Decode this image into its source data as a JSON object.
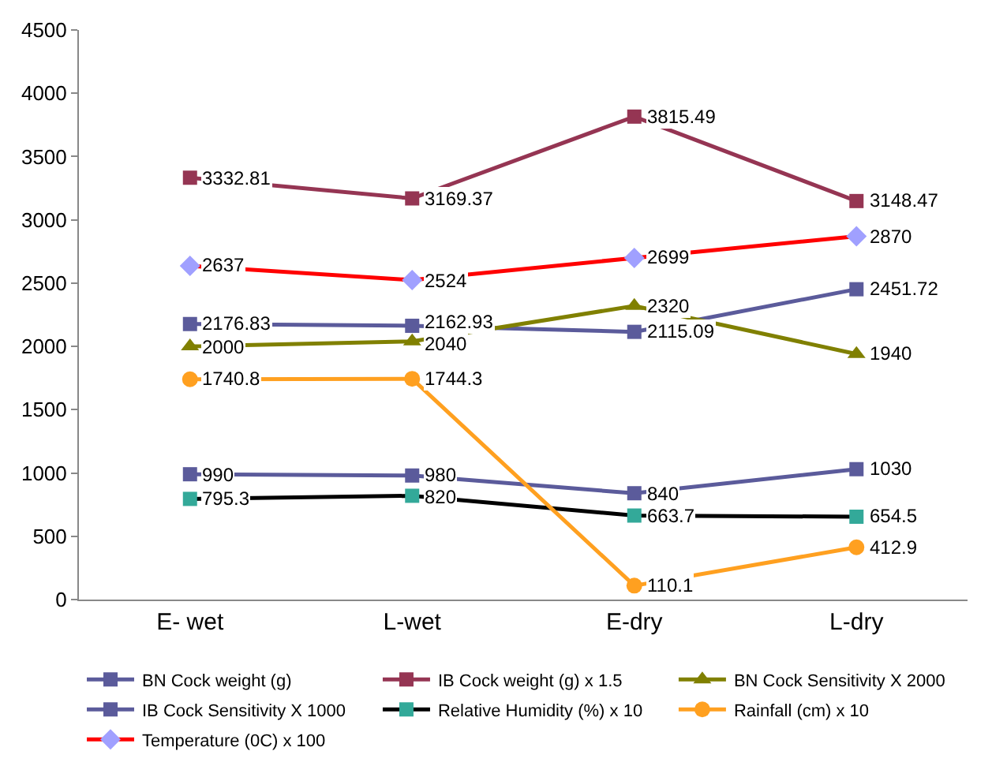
{
  "chart_data": {
    "type": "line",
    "categories": [
      "E- wet",
      "L-wet",
      "E-dry",
      "L-dry"
    ],
    "ylim": [
      0,
      4500
    ],
    "yticks": [
      0,
      500,
      1000,
      1500,
      2000,
      2500,
      3000,
      3500,
      4000,
      4500
    ],
    "grid": false,
    "legend": "bottom",
    "data_labels": true,
    "line_style": "solid",
    "series": [
      {
        "name": "BN Cock weight (g)",
        "color": "#5b5b9b",
        "marker": "square",
        "values": [
          2176.83,
          2162.93,
          2115.09,
          2451.72
        ]
      },
      {
        "name": "IB Cock weight (g) x 1.5",
        "color": "#953553",
        "marker": "square",
        "values": [
          3332.81,
          3169.37,
          3815.49,
          3148.47
        ]
      },
      {
        "name": "BN Cock Sensitivity X 2000",
        "color": "#808000",
        "marker": "triangle",
        "values": [
          2000,
          2040,
          2320,
          1940
        ]
      },
      {
        "name": "IB Cock Sensitivity X 1000",
        "color": "#5b5b9b",
        "marker": "square",
        "values": [
          990,
          980,
          840,
          1030
        ]
      },
      {
        "name": "Relative Humidity (%) x 10",
        "color": "#000000",
        "colors": [
          "#33a999",
          "#33a999",
          "#33a999",
          "#33a999"
        ],
        "marker": "square",
        "values": [
          795.3,
          820,
          663.7,
          654.5
        ]
      },
      {
        "name": "Rainfall (cm) x 10",
        "color": "#ffa020",
        "marker": "circle",
        "values": [
          1740.8,
          1744.3,
          110.1,
          412.9
        ]
      },
      {
        "name": "Temperature (0C) x 100",
        "color": "#ff0000",
        "colors": [
          "#a0a0ff",
          "#a0a0ff",
          "#a0a0ff",
          "#a0a0ff"
        ],
        "marker": "diamond",
        "values": [
          2637,
          2524,
          2699,
          2870
        ]
      }
    ]
  }
}
